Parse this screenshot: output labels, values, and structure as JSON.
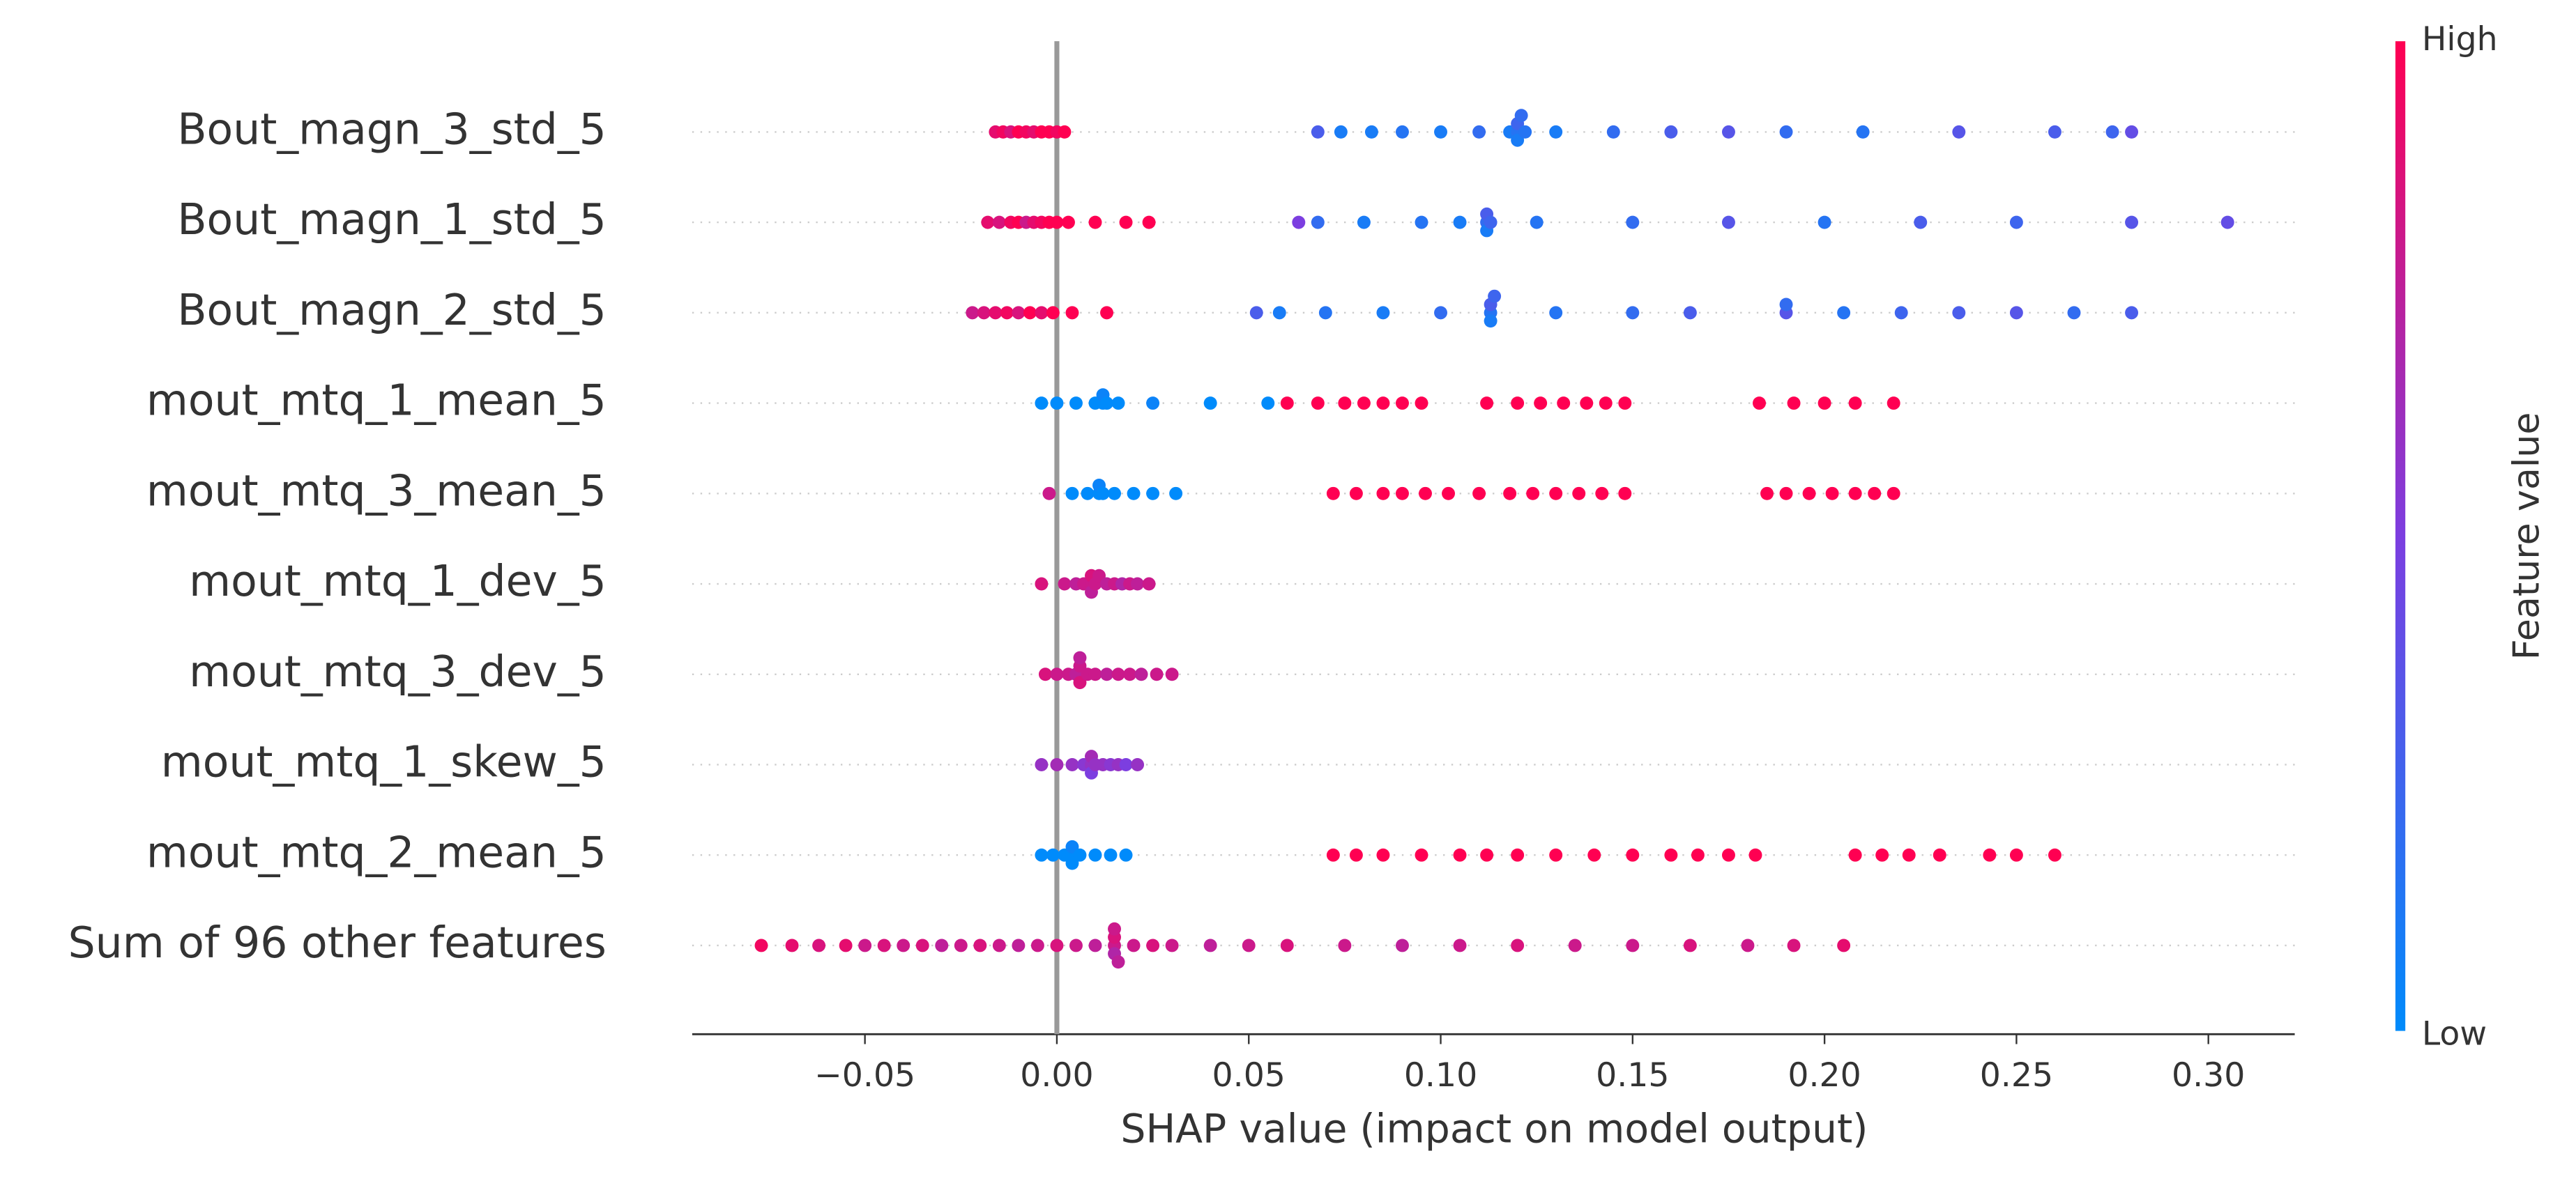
{
  "chart_data": {
    "type": "beeswarm",
    "x_label": "SHAP value (impact on model output)",
    "xlim": [
      -0.095,
      0.3225
    ],
    "xticks": [
      {
        "value": -0.05,
        "label": "−0.05"
      },
      {
        "value": 0,
        "label": "0.00"
      },
      0.05,
      {
        "value": 0.1,
        "label": "0.10"
      },
      0.15,
      {
        "value": 0.2,
        "label": "0.20"
      },
      0.25,
      {
        "value": 0.3,
        "label": "0.30"
      }
    ],
    "colorbar": {
      "label": "Feature value",
      "high": "High",
      "low": "Low",
      "colors": [
        "#008bfb",
        "#7c3ee0",
        "#ff0052"
      ]
    },
    "series": [
      {
        "name": "Bout_magn_3_std_5",
        "values": [
          -0.016,
          -0.014,
          -0.012,
          -0.01,
          -0.008,
          -0.006,
          -0.004,
          -0.002,
          0.0,
          0.002,
          0.068,
          0.074,
          0.082,
          0.09,
          0.1,
          0.11,
          0.118,
          0.12,
          0.12,
          0.12,
          0.121,
          0.122,
          0.13,
          0.145,
          0.16,
          0.175,
          0.19,
          0.21,
          0.235,
          0.26,
          0.275,
          0.28
        ],
        "feature_values": [
          0.9,
          0.95,
          0.85,
          1,
          0.95,
          0.9,
          1,
          1,
          0.95,
          1,
          0.3,
          0.1,
          0.1,
          0.15,
          0.1,
          0.2,
          0.1,
          0.15,
          0.25,
          0.1,
          0.2,
          0.15,
          0.1,
          0.2,
          0.3,
          0.35,
          0.2,
          0.15,
          0.35,
          0.3,
          0.25,
          0.4
        ]
      },
      {
        "name": "Bout_magn_1_std_5",
        "values": [
          -0.018,
          -0.015,
          -0.012,
          -0.01,
          -0.008,
          -0.006,
          -0.004,
          -0.002,
          0.0,
          0.003,
          0.01,
          0.018,
          0.024,
          0.063,
          0.068,
          0.08,
          0.095,
          0.105,
          0.112,
          0.112,
          0.112,
          0.113,
          0.125,
          0.15,
          0.175,
          0.2,
          0.225,
          0.25,
          0.28,
          0.305
        ],
        "feature_values": [
          0.9,
          0.85,
          0.95,
          1,
          0.8,
          0.9,
          0.95,
          1,
          1,
          1,
          1,
          1,
          1,
          0.5,
          0.2,
          0.1,
          0.15,
          0.1,
          0.2,
          0.3,
          0.1,
          0.25,
          0.15,
          0.2,
          0.35,
          0.15,
          0.3,
          0.25,
          0.35,
          0.4
        ]
      },
      {
        "name": "Bout_magn_2_std_5",
        "values": [
          -0.022,
          -0.019,
          -0.016,
          -0.013,
          -0.01,
          -0.007,
          -0.004,
          -0.001,
          0.004,
          0.013,
          0.052,
          0.058,
          0.07,
          0.085,
          0.1,
          0.113,
          0.113,
          0.113,
          0.114,
          0.13,
          0.15,
          0.165,
          0.19,
          0.19,
          0.205,
          0.22,
          0.235,
          0.25,
          0.265,
          0.28
        ],
        "feature_values": [
          0.8,
          0.85,
          0.9,
          0.95,
          0.85,
          1,
          0.9,
          1,
          1,
          1,
          0.3,
          0.1,
          0.15,
          0.1,
          0.2,
          0.15,
          0.3,
          0.1,
          0.25,
          0.15,
          0.2,
          0.3,
          0.35,
          0.2,
          0.15,
          0.25,
          0.3,
          0.35,
          0.2,
          0.3
        ]
      },
      {
        "name": "mout_mtq_1_mean_5",
        "values": [
          -0.004,
          0.0,
          0.005,
          0.01,
          0.012,
          0.012,
          0.013,
          0.016,
          0.025,
          0.04,
          0.055,
          0.06,
          0.068,
          0.075,
          0.08,
          0.085,
          0.09,
          0.095,
          0.112,
          0.12,
          0.126,
          0.132,
          0.138,
          0.143,
          0.148,
          0.183,
          0.192,
          0.2,
          0.208,
          0.218
        ],
        "feature_values": [
          0,
          0,
          0,
          0,
          0,
          0.05,
          0,
          0,
          0.05,
          0,
          0,
          1,
          1,
          1,
          1,
          1,
          1,
          1,
          1,
          1,
          1,
          1,
          1,
          1,
          1,
          1,
          1,
          1,
          1,
          1
        ]
      },
      {
        "name": "mout_mtq_3_mean_5",
        "values": [
          -0.002,
          0.004,
          0.008,
          0.011,
          0.011,
          0.012,
          0.015,
          0.02,
          0.025,
          0.031,
          0.072,
          0.078,
          0.085,
          0.09,
          0.096,
          0.102,
          0.11,
          0.118,
          0.124,
          0.13,
          0.136,
          0.142,
          0.148,
          0.185,
          0.19,
          0.196,
          0.202,
          0.208,
          0.213,
          0.218
        ],
        "feature_values": [
          0.8,
          0,
          0,
          0,
          0.05,
          0,
          0,
          0,
          0,
          0,
          1,
          1,
          1,
          1,
          1,
          1,
          1,
          1,
          1,
          1,
          1,
          1,
          1,
          1,
          1,
          1,
          1,
          1,
          1,
          1
        ]
      },
      {
        "name": "mout_mtq_1_dev_5",
        "values": [
          -0.004,
          0.002,
          0.005,
          0.007,
          0.009,
          0.009,
          0.009,
          0.01,
          0.011,
          0.013,
          0.015,
          0.017,
          0.019,
          0.021,
          0.024
        ],
        "feature_values": [
          0.85,
          0.8,
          0.75,
          0.8,
          0.8,
          0.85,
          0.75,
          0.8,
          0.8,
          0.75,
          0.8,
          0.7,
          0.8,
          0.75,
          0.8
        ]
      },
      {
        "name": "mout_mtq_3_dev_5",
        "values": [
          -0.003,
          0.0,
          0.003,
          0.005,
          0.006,
          0.006,
          0.006,
          0.008,
          0.01,
          0.013,
          0.016,
          0.019,
          0.022,
          0.026,
          0.03
        ],
        "feature_values": [
          0.85,
          0.8,
          0.8,
          0.75,
          0.8,
          0.85,
          0.75,
          0.8,
          0.8,
          0.75,
          0.8,
          0.8,
          0.75,
          0.8,
          0.8
        ]
      },
      {
        "name": "mout_mtq_1_skew_5",
        "values": [
          -0.004,
          0.0,
          0.004,
          0.007,
          0.009,
          0.009,
          0.009,
          0.01,
          0.012,
          0.014,
          0.016,
          0.018,
          0.021
        ],
        "feature_values": [
          0.6,
          0.65,
          0.6,
          0.55,
          0.6,
          0.65,
          0.5,
          0.6,
          0.6,
          0.55,
          0.6,
          0.5,
          0.6
        ]
      },
      {
        "name": "mout_mtq_2_mean_5",
        "values": [
          -0.004,
          -0.001,
          0.002,
          0.004,
          0.004,
          0.004,
          0.006,
          0.01,
          0.014,
          0.018,
          0.072,
          0.078,
          0.085,
          0.095,
          0.105,
          0.112,
          0.12,
          0.13,
          0.14,
          0.15,
          0.16,
          0.167,
          0.175,
          0.182,
          0.208,
          0.215,
          0.222,
          0.23,
          0.243,
          0.25,
          0.26
        ],
        "feature_values": [
          0,
          0,
          0,
          0,
          0.05,
          0,
          0,
          0,
          0,
          0,
          1,
          1,
          1,
          1,
          1,
          1,
          1,
          1,
          1,
          1,
          1,
          1,
          1,
          1,
          1,
          1,
          1,
          1,
          1,
          1,
          1
        ]
      },
      {
        "name": "Sum of 96 other features",
        "values": [
          -0.077,
          -0.069,
          -0.062,
          -0.055,
          -0.05,
          -0.045,
          -0.04,
          -0.035,
          -0.03,
          -0.025,
          -0.02,
          -0.015,
          -0.01,
          -0.005,
          0.0,
          0.005,
          0.01,
          0.015,
          0.015,
          0.015,
          0.015,
          0.016,
          0.02,
          0.025,
          0.03,
          0.04,
          0.05,
          0.06,
          0.075,
          0.09,
          0.105,
          0.12,
          0.135,
          0.15,
          0.165,
          0.18,
          0.192,
          0.205
        ],
        "feature_values": [
          0.95,
          0.9,
          0.85,
          0.9,
          0.8,
          0.85,
          0.8,
          0.85,
          0.75,
          0.8,
          0.85,
          0.8,
          0.75,
          0.8,
          0.85,
          0.8,
          0.75,
          0.8,
          0.85,
          0.7,
          0.8,
          0.75,
          0.8,
          0.85,
          0.8,
          0.75,
          0.8,
          0.85,
          0.8,
          0.75,
          0.8,
          0.85,
          0.8,
          0.8,
          0.85,
          0.8,
          0.85,
          0.9
        ]
      }
    ]
  }
}
